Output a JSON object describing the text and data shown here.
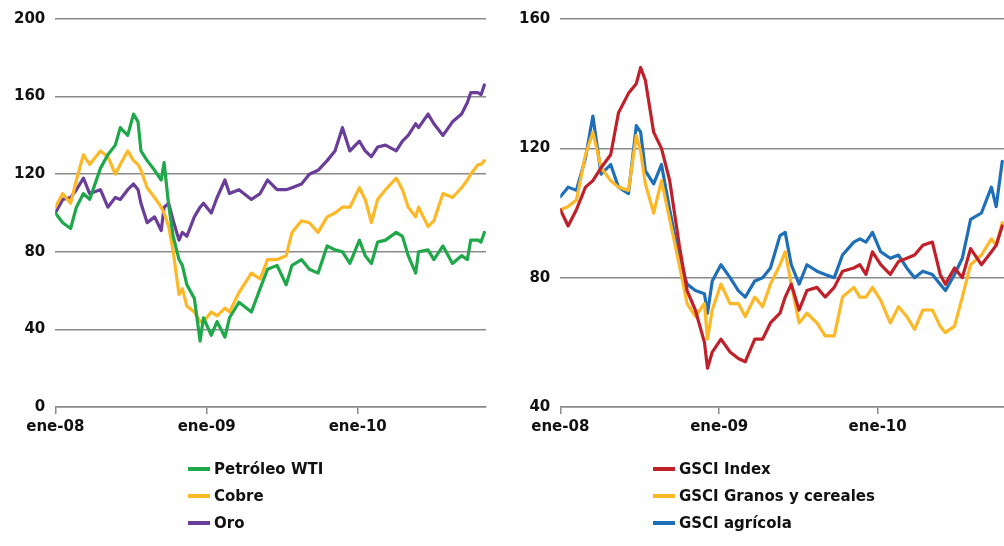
{
  "chart_data": [
    {
      "type": "line",
      "legend": "bottom",
      "grid": "y",
      "x": [
        "2008-01-01",
        "2008-01-19",
        "2008-02-07",
        "2008-02-21",
        "2008-03-09",
        "2008-03-24",
        "2008-04-19",
        "2008-05-07",
        "2008-05-25",
        "2008-06-06",
        "2008-06-24",
        "2008-07-08",
        "2008-07-19",
        "2008-07-26",
        "2008-08-10",
        "2008-08-28",
        "2008-09-13",
        "2008-09-20",
        "2008-10-01",
        "2008-10-12",
        "2008-10-26",
        "2008-11-03",
        "2008-11-14",
        "2008-12-02",
        "2008-12-16",
        "2008-12-24",
        "2009-01-12",
        "2009-01-26",
        "2009-02-14",
        "2009-02-25",
        "2009-03-20",
        "2009-04-19",
        "2009-05-10",
        "2009-05-28",
        "2009-06-20",
        "2009-07-12",
        "2009-07-26",
        "2009-08-18",
        "2009-09-06",
        "2009-09-27",
        "2009-10-19",
        "2009-11-07",
        "2009-11-25",
        "2009-12-13",
        "2010-01-05",
        "2010-01-19",
        "2010-02-03",
        "2010-02-18",
        "2010-03-09",
        "2010-04-04",
        "2010-04-19",
        "2010-05-03",
        "2010-05-21",
        "2010-05-28",
        "2010-06-20",
        "2010-07-04",
        "2010-07-26",
        "2010-08-18",
        "2010-09-09",
        "2010-09-23",
        "2010-10-01",
        "2010-10-19",
        "2010-10-26",
        "2010-11-03"
      ],
      "xlim": [
        "2008-01-01",
        "2010-11-07"
      ],
      "xticks": [
        {
          "value": "2008-01-01",
          "label": "ene-08"
        },
        {
          "value": "2009-01-01",
          "label": "ene-09"
        },
        {
          "value": "2010-01-01",
          "label": "ene-10"
        }
      ],
      "ylim": [
        0,
        200
      ],
      "yticks": [
        0,
        40,
        80,
        120,
        160,
        200
      ],
      "series": [
        {
          "name": "Petróleo WTI",
          "color": "#1fa84a",
          "values": [
            100,
            95,
            92,
            103,
            110,
            107,
            123,
            130,
            135,
            144,
            140,
            151,
            147,
            132,
            127,
            122,
            117,
            126,
            104,
            88,
            76,
            73,
            63,
            56,
            34,
            46,
            37,
            44,
            36,
            46,
            54,
            49,
            61,
            71,
            73,
            63,
            73,
            76,
            71,
            69,
            83,
            81,
            80,
            74,
            86,
            78,
            74,
            85,
            86,
            90,
            88,
            78,
            69,
            80,
            81,
            76,
            83,
            74,
            78,
            76,
            86,
            86,
            85,
            90
          ]
        },
        {
          "name": "Cobre",
          "color": "#fdb827",
          "values": [
            103,
            110,
            105,
            117,
            130,
            125,
            132,
            129,
            120,
            125,
            132,
            127,
            125,
            122,
            113,
            108,
            103,
            100,
            93,
            80,
            58,
            61,
            52,
            49,
            44,
            44,
            49,
            47,
            51,
            49,
            59,
            69,
            66,
            76,
            76,
            78,
            90,
            96,
            95,
            90,
            98,
            100,
            103,
            103,
            113,
            107,
            95,
            107,
            112,
            118,
            112,
            103,
            98,
            103,
            93,
            96,
            110,
            108,
            113,
            117,
            120,
            125,
            125,
            127
          ]
        },
        {
          "name": "Oro",
          "color": "#6a3d9a",
          "values": [
            100,
            107,
            108,
            112,
            118,
            110,
            112,
            103,
            108,
            107,
            112,
            115,
            112,
            105,
            95,
            98,
            91,
            103,
            105,
            96,
            86,
            90,
            88,
            98,
            103,
            105,
            100,
            108,
            117,
            110,
            112,
            107,
            110,
            117,
            112,
            112,
            113,
            115,
            120,
            122,
            127,
            132,
            144,
            132,
            137,
            132,
            129,
            134,
            135,
            132,
            137,
            140,
            146,
            144,
            151,
            146,
            140,
            147,
            151,
            157,
            162,
            162,
            161,
            166
          ]
        }
      ]
    },
    {
      "type": "line",
      "legend": "bottom",
      "grid": "y",
      "x": [
        "2008-01-01",
        "2008-01-19",
        "2008-02-07",
        "2008-02-28",
        "2008-03-16",
        "2008-04-04",
        "2008-04-26",
        "2008-05-14",
        "2008-06-06",
        "2008-06-24",
        "2008-07-04",
        "2008-07-15",
        "2008-08-03",
        "2008-08-21",
        "2008-09-09",
        "2008-10-01",
        "2008-10-19",
        "2008-11-07",
        "2008-11-28",
        "2008-12-05",
        "2008-12-16",
        "2009-01-05",
        "2009-01-26",
        "2009-02-14",
        "2009-03-02",
        "2009-03-24",
        "2009-04-11",
        "2009-04-29",
        "2009-05-21",
        "2009-06-02",
        "2009-06-16",
        "2009-07-04",
        "2009-07-22",
        "2009-08-14",
        "2009-09-02",
        "2009-09-23",
        "2009-10-12",
        "2009-11-07",
        "2009-11-21",
        "2009-12-05",
        "2009-12-20",
        "2010-01-08",
        "2010-01-30",
        "2010-02-18",
        "2010-03-09",
        "2010-03-27",
        "2010-04-15",
        "2010-05-07",
        "2010-05-25",
        "2010-06-06",
        "2010-06-27",
        "2010-07-15",
        "2010-08-03",
        "2010-08-28",
        "2010-09-20",
        "2010-10-01",
        "2010-10-15"
      ],
      "xlim": [
        "2008-01-01",
        "2010-10-19"
      ],
      "xticks": [
        {
          "value": "2008-01-01",
          "label": "ene-08"
        },
        {
          "value": "2009-01-01",
          "label": "ene-09"
        },
        {
          "value": "2010-01-01",
          "label": "ene-10"
        }
      ],
      "ylim": [
        40,
        160
      ],
      "yticks": [
        40,
        80,
        120,
        160
      ],
      "series": [
        {
          "name": "GSCI Index",
          "color": "#c0202a",
          "values": [
            101,
            96,
            101,
            108,
            110,
            114,
            118,
            131,
            137,
            140,
            145,
            141,
            125,
            120,
            110,
            90,
            76,
            70,
            60,
            52,
            57,
            61,
            57,
            55,
            54,
            61,
            61,
            66,
            69,
            74,
            78,
            70,
            76,
            77,
            74,
            77,
            82,
            83,
            84,
            81,
            88,
            84,
            81,
            85,
            86,
            87,
            90,
            91,
            81,
            78,
            83,
            80,
            89,
            84,
            88,
            90,
            96
          ]
        },
        {
          "name": "GSCI Granos y cereales",
          "color": "#fdb827",
          "values": [
            101,
            102,
            104,
            118,
            125,
            114,
            110,
            108,
            107,
            124,
            119,
            109,
            100,
            110,
            98,
            84,
            72,
            68,
            72,
            61,
            70,
            78,
            72,
            72,
            68,
            74,
            71,
            78,
            84,
            88,
            78,
            66,
            69,
            66,
            62,
            62,
            74,
            77,
            74,
            74,
            77,
            73,
            66,
            71,
            68,
            64,
            70,
            70,
            65,
            63,
            65,
            74,
            84,
            87,
            92,
            90,
            97
          ]
        },
        {
          "name": "GSCI agrícola",
          "color": "#1f6fb8",
          "values": [
            105,
            108,
            107,
            117,
            130,
            112,
            115,
            108,
            106,
            127,
            125,
            113,
            109,
            115,
            101,
            86,
            78,
            76,
            75,
            69,
            79,
            84,
            80,
            76,
            74,
            79,
            80,
            83,
            93,
            94,
            84,
            78,
            84,
            82,
            81,
            80,
            87,
            91,
            92,
            91,
            94,
            88,
            86,
            87,
            83,
            80,
            82,
            81,
            78,
            76,
            81,
            86,
            98,
            100,
            108,
            102,
            116
          ]
        }
      ]
    }
  ]
}
